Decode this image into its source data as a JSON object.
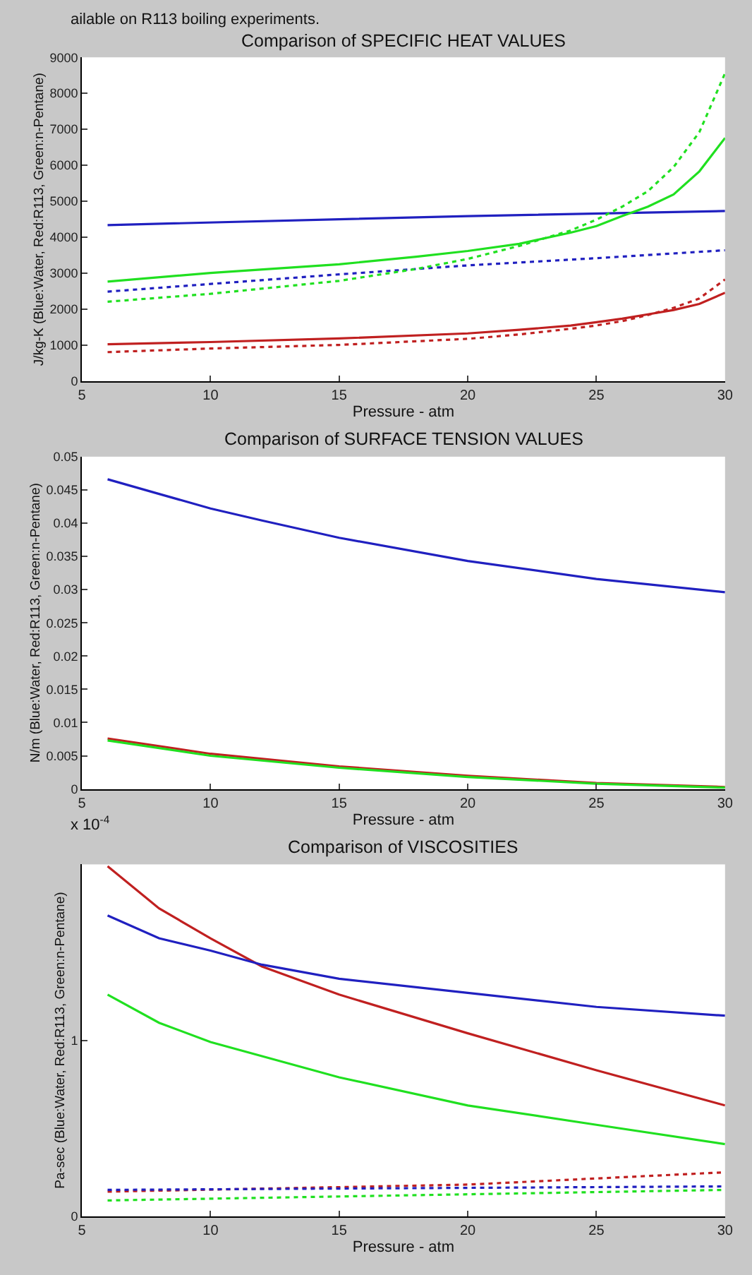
{
  "chart_data": [
    {
      "type": "line",
      "title": "Comparison of SPECIFIC HEAT VALUES",
      "xlabel": "Pressure - atm",
      "ylabel": "J/kg-K (Blue:Water, Red:R113, Green:n-Pentane)",
      "annotations": [
        "ailable on R113 boiling experiments."
      ],
      "xlim": [
        5,
        30
      ],
      "xticks": [
        5,
        10,
        15,
        20,
        25,
        30
      ],
      "ylim": [
        0,
        9000
      ],
      "yticks": [
        0,
        1000,
        2000,
        3000,
        4000,
        5000,
        6000,
        7000,
        8000,
        9000
      ],
      "grid": false,
      "series": [
        {
          "color": "#2020c0",
          "line_style": "solid",
          "x": [
            6,
            20,
            30
          ],
          "values": [
            4340,
            4590,
            4730
          ]
        },
        {
          "color": "#2020c0",
          "line_style": "dotted",
          "x": [
            6,
            15,
            20,
            25,
            30
          ],
          "values": [
            2490,
            2970,
            3220,
            3420,
            3640
          ]
        },
        {
          "color": "#20e020",
          "line_style": "solid",
          "x": [
            6,
            10,
            15,
            18,
            20,
            22,
            24,
            25,
            26,
            27,
            28,
            29,
            30
          ],
          "values": [
            2770,
            3010,
            3250,
            3460,
            3620,
            3820,
            4130,
            4310,
            4590,
            4850,
            5190,
            5830,
            6760
          ]
        },
        {
          "color": "#20e020",
          "line_style": "dotted",
          "x": [
            6,
            10,
            15,
            18,
            20,
            22,
            24,
            25,
            26,
            27,
            28,
            29,
            30
          ],
          "values": [
            2210,
            2430,
            2790,
            3120,
            3400,
            3760,
            4190,
            4490,
            4850,
            5280,
            5950,
            6920,
            8560
          ]
        },
        {
          "color": "#c02020",
          "line_style": "solid",
          "x": [
            6,
            10,
            15,
            20,
            22,
            24,
            25,
            26,
            27,
            28,
            29,
            30
          ],
          "values": [
            1030,
            1090,
            1190,
            1330,
            1430,
            1550,
            1640,
            1740,
            1860,
            1980,
            2150,
            2460
          ]
        },
        {
          "color": "#c02020",
          "line_style": "dotted",
          "x": [
            6,
            10,
            15,
            20,
            22,
            24,
            25,
            26,
            27,
            28,
            29,
            30
          ],
          "values": [
            810,
            910,
            1010,
            1180,
            1300,
            1460,
            1550,
            1670,
            1840,
            2040,
            2300,
            2830
          ]
        }
      ]
    },
    {
      "type": "line",
      "title": "Comparison of SURFACE TENSION VALUES",
      "xlabel": "Pressure - atm",
      "ylabel": "N/m (Blue:Water, Red:R113, Green:n-Pentane)",
      "xlim": [
        5,
        30
      ],
      "xticks": [
        5,
        10,
        15,
        20,
        25,
        30
      ],
      "ylim": [
        0,
        0.05
      ],
      "yticks": [
        0,
        0.005,
        0.01,
        0.015,
        0.02,
        0.025,
        0.03,
        0.035,
        0.04,
        0.045,
        0.05
      ],
      "grid": false,
      "series": [
        {
          "color": "#2020c0",
          "line_style": "solid",
          "x": [
            6,
            8,
            10,
            12,
            15,
            20,
            25,
            30
          ],
          "values": [
            0.0466,
            0.0444,
            0.0422,
            0.0404,
            0.0378,
            0.0343,
            0.0316,
            0.0296
          ]
        },
        {
          "color": "#c02020",
          "line_style": "solid",
          "x": [
            6,
            10,
            15,
            20,
            25,
            30
          ],
          "values": [
            0.0076,
            0.0053,
            0.0034,
            0.002,
            0.0009,
            0.0003
          ]
        },
        {
          "color": "#20e020",
          "line_style": "solid",
          "x": [
            6,
            10,
            15,
            20,
            25,
            30
          ],
          "values": [
            0.0073,
            0.005,
            0.0032,
            0.0018,
            0.0008,
            0.0002
          ]
        }
      ]
    },
    {
      "type": "line",
      "title": "Comparison of VISCOSITIES",
      "xlabel": "Pressure - atm",
      "ylabel": "Pa-sec (Blue:Water, Red:R113, Green:n-Pentane)",
      "annotations": [
        "x 10$^{-4}$"
      ],
      "xlim": [
        5,
        30
      ],
      "xticks": [
        5,
        10,
        15,
        20,
        25,
        30
      ],
      "ylim": [
        0,
        2
      ],
      "yticks": [
        0,
        1
      ],
      "grid": false,
      "series": [
        {
          "color": "#c02020",
          "line_style": "solid",
          "x": [
            6,
            8,
            10,
            12,
            15,
            20,
            25,
            30
          ],
          "values": [
            1.99,
            1.75,
            1.58,
            1.42,
            1.26,
            1.04,
            0.83,
            0.63
          ]
        },
        {
          "color": "#2020c0",
          "line_style": "solid",
          "x": [
            6,
            8,
            10,
            12,
            15,
            20,
            25,
            30
          ],
          "values": [
            1.71,
            1.58,
            1.51,
            1.43,
            1.35,
            1.27,
            1.19,
            1.14
          ]
        },
        {
          "color": "#20e020",
          "line_style": "solid",
          "x": [
            6,
            8,
            10,
            12,
            15,
            20,
            25,
            30
          ],
          "values": [
            1.26,
            1.1,
            0.99,
            0.91,
            0.79,
            0.63,
            0.52,
            0.41
          ]
        },
        {
          "color": "#c02020",
          "line_style": "dotted",
          "x": [
            6,
            20,
            30
          ],
          "values": [
            0.14,
            0.18,
            0.25
          ]
        },
        {
          "color": "#2020c0",
          "line_style": "dotted",
          "x": [
            6,
            30
          ],
          "values": [
            0.15,
            0.17
          ]
        },
        {
          "color": "#20e020",
          "line_style": "dotted",
          "x": [
            6,
            30
          ],
          "values": [
            0.09,
            0.15
          ]
        }
      ]
    }
  ]
}
